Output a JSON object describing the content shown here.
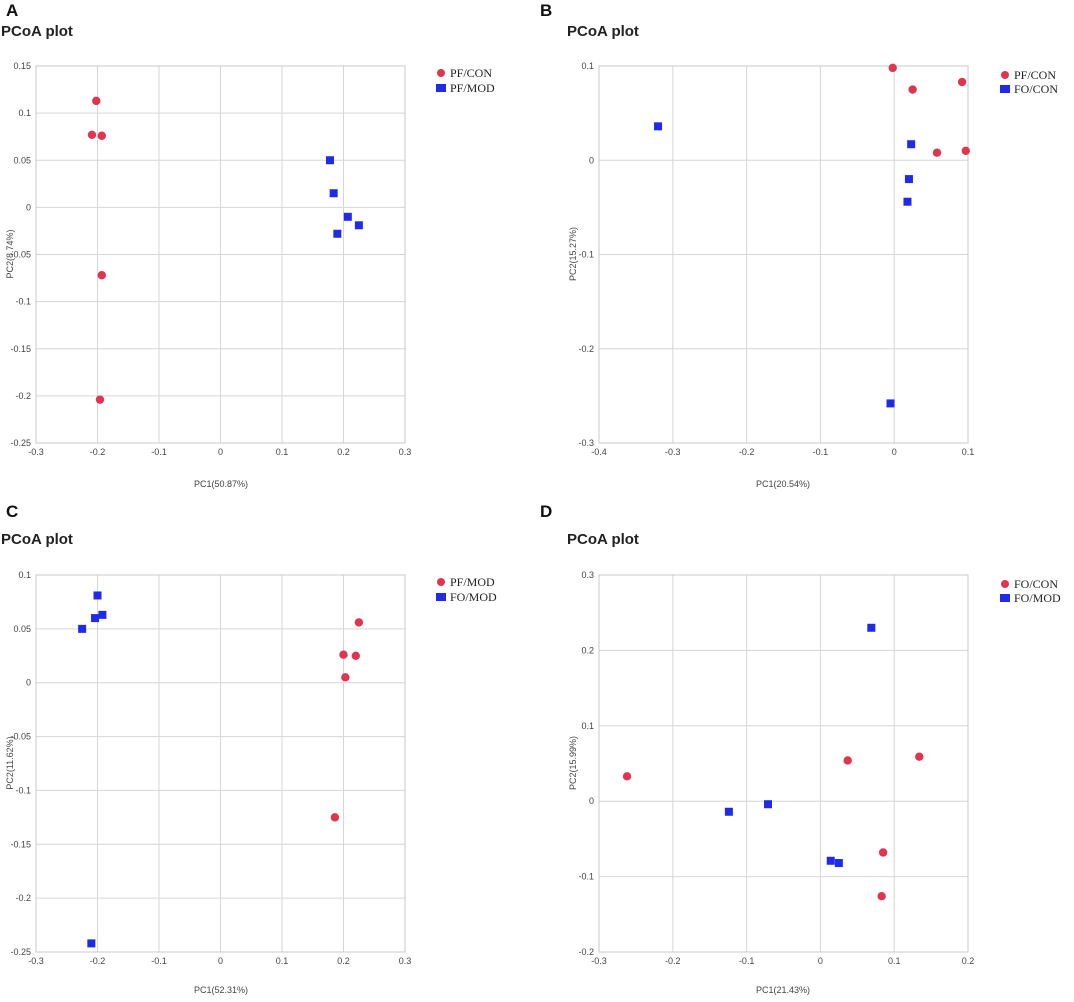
{
  "colors": {
    "circle_series": "#e0344f",
    "square_series": "#1f2be8",
    "grid": "#d6d6d6",
    "text": "#444444"
  },
  "chart_data": [
    {
      "type": "scatter",
      "panel": "A",
      "title": "PCoA plot",
      "xlabel": "PC1(50.87%)",
      "ylabel": "PC2(8.74%)",
      "xlim": [
        -0.3,
        0.3
      ],
      "ylim": [
        -0.25,
        0.15
      ],
      "xticks": [
        -0.3,
        -0.2,
        -0.1,
        0,
        0.1,
        0.2,
        0.3
      ],
      "xtick_labels": [
        "-0.3",
        "-0.2",
        "-0.1",
        "0",
        "0.1",
        "0.2",
        "0.3"
      ],
      "yticks": [
        0.15,
        0.1,
        0.05,
        0,
        -0.05,
        -0.1,
        -0.15,
        -0.2,
        -0.25
      ],
      "ytick_labels": [
        "0.15",
        "0.1",
        "0.05",
        "0",
        "-0.05",
        "-0.1",
        "-0.15",
        "-0.2",
        "-0.25"
      ],
      "grid": true,
      "legend_position": "top-right",
      "series": [
        {
          "name": "PF/CON",
          "marker": "circle",
          "points": [
            [
              -0.202,
              0.113
            ],
            [
              -0.209,
              0.077
            ],
            [
              -0.193,
              0.076
            ],
            [
              -0.193,
              -0.072
            ],
            [
              -0.196,
              -0.204
            ]
          ]
        },
        {
          "name": "PF/MOD",
          "marker": "square",
          "points": [
            [
              0.178,
              0.05
            ],
            [
              0.184,
              0.015
            ],
            [
              0.207,
              -0.01
            ],
            [
              0.225,
              -0.019
            ],
            [
              0.19,
              -0.028
            ]
          ]
        }
      ]
    },
    {
      "type": "scatter",
      "panel": "B",
      "title": "PCoA plot",
      "xlabel": "PC1(20.54%)",
      "ylabel": "PC2(15.27%)",
      "xlim": [
        -0.4,
        0.1
      ],
      "ylim": [
        -0.3,
        0.1
      ],
      "xticks": [
        -0.4,
        -0.3,
        -0.2,
        -0.1,
        0,
        0.1
      ],
      "xtick_labels": [
        "-0.4",
        "-0.3",
        "-0.2",
        "-0.1",
        "0",
        "0.1"
      ],
      "yticks": [
        0.1,
        0,
        -0.1,
        -0.2,
        -0.3
      ],
      "ytick_labels": [
        "0.1",
        "0",
        "-0.1",
        "-0.2",
        "-0.3"
      ],
      "grid": true,
      "legend_position": "top-right",
      "series": [
        {
          "name": "PF/CON",
          "marker": "circle",
          "points": [
            [
              -0.002,
              0.098
            ],
            [
              0.092,
              0.083
            ],
            [
              0.025,
              0.075
            ],
            [
              0.058,
              0.008
            ],
            [
              0.097,
              0.01
            ]
          ]
        },
        {
          "name": "FO/CON",
          "marker": "square",
          "points": [
            [
              -0.32,
              0.036
            ],
            [
              0.023,
              0.017
            ],
            [
              0.02,
              -0.02
            ],
            [
              0.018,
              -0.044
            ],
            [
              -0.005,
              -0.258
            ]
          ]
        }
      ]
    },
    {
      "type": "scatter",
      "panel": "C",
      "title": "PCoA plot",
      "xlabel": "PC1(52.31%)",
      "ylabel": "PC2(11.62%)",
      "xlim": [
        -0.3,
        0.3
      ],
      "ylim": [
        -0.25,
        0.1
      ],
      "xticks": [
        -0.3,
        -0.2,
        -0.1,
        0,
        0.1,
        0.2,
        0.3
      ],
      "xtick_labels": [
        "-0.3",
        "-0.2",
        "-0.1",
        "0",
        "0.1",
        "0.2",
        "0.3"
      ],
      "yticks": [
        0.1,
        0.05,
        0,
        -0.05,
        -0.1,
        -0.15,
        -0.2,
        -0.25
      ],
      "ytick_labels": [
        "0.1",
        "0.05",
        "0",
        "-0.05",
        "-0.1",
        "-0.15",
        "-0.2",
        "-0.25"
      ],
      "grid": true,
      "legend_position": "top-right",
      "series": [
        {
          "name": "PF/MOD",
          "marker": "circle",
          "points": [
            [
              0.225,
              0.056
            ],
            [
              0.2,
              0.026
            ],
            [
              0.22,
              0.025
            ],
            [
              0.203,
              0.005
            ],
            [
              0.186,
              -0.125
            ]
          ]
        },
        {
          "name": "FO/MOD",
          "marker": "square",
          "points": [
            [
              -0.2,
              0.081
            ],
            [
              -0.192,
              0.063
            ],
            [
              -0.204,
              0.06
            ],
            [
              -0.225,
              0.05
            ],
            [
              -0.21,
              -0.242
            ]
          ]
        }
      ]
    },
    {
      "type": "scatter",
      "panel": "D",
      "title": "PCoA plot",
      "xlabel": "PC1(21.43%)",
      "ylabel": "PC2(15.99%)",
      "xlim": [
        -0.3,
        0.2
      ],
      "ylim": [
        -0.2,
        0.3
      ],
      "xticks": [
        -0.3,
        -0.2,
        -0.1,
        0,
        0.1,
        0.2
      ],
      "xtick_labels": [
        "-0.3",
        "-0.2",
        "-0.1",
        "0",
        "0.1",
        "0.2"
      ],
      "yticks": [
        0.3,
        0.2,
        0.1,
        0,
        -0.1,
        -0.2
      ],
      "ytick_labels": [
        "0.3",
        "0.2",
        "0.1",
        "0",
        "-0.1",
        "-0.2"
      ],
      "grid": true,
      "legend_position": "top-right",
      "series": [
        {
          "name": "FO/CON",
          "marker": "circle",
          "points": [
            [
              -0.262,
              0.033
            ],
            [
              0.037,
              0.054
            ],
            [
              0.134,
              0.059
            ],
            [
              0.085,
              -0.068
            ],
            [
              0.083,
              -0.126
            ]
          ]
        },
        {
          "name": "FO/MOD",
          "marker": "square",
          "points": [
            [
              0.069,
              0.23
            ],
            [
              -0.124,
              -0.014
            ],
            [
              -0.071,
              -0.004
            ],
            [
              0.014,
              -0.079
            ],
            [
              0.025,
              -0.082
            ]
          ]
        }
      ]
    }
  ]
}
